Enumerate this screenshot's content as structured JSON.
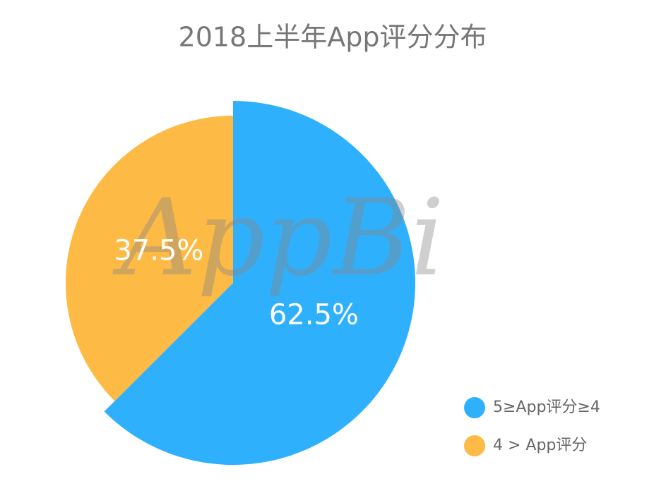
{
  "chart_data": {
    "type": "pie",
    "title": "2018上半年App评分分布",
    "watermark": "AppBi",
    "categories": [
      "5≥App评分≥4",
      "4 > App评分"
    ],
    "values": [
      62.5,
      37.5
    ],
    "value_labels": [
      "62.5%",
      "37.5%"
    ],
    "colors": [
      "#2fb0fd",
      "#fdba45"
    ],
    "legend": "bottom-right"
  }
}
